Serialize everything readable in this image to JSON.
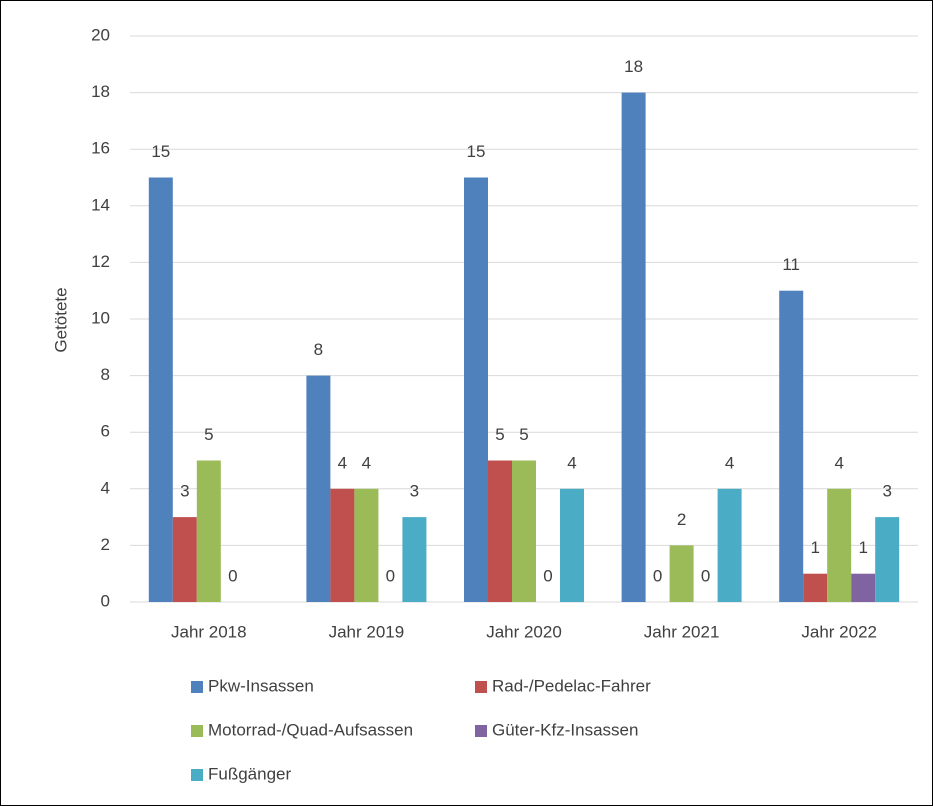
{
  "chart_data": {
    "type": "bar",
    "categories": [
      "Jahr 2018",
      "Jahr 2019",
      "Jahr 2020",
      "Jahr 2021",
      "Jahr 2022"
    ],
    "y_label": "Getötete",
    "series": [
      {
        "name": "Pkw-Insassen",
        "color": "#4f81bd",
        "values": [
          15,
          8,
          15,
          18,
          11
        ]
      },
      {
        "name": "Rad-/Pedelac-Fahrer",
        "color": "#c0504d",
        "values": [
          3,
          4,
          5,
          0,
          1
        ]
      },
      {
        "name": "Motorrad-/Quad-Aufsassen",
        "color": "#9bbb59",
        "values": [
          5,
          4,
          5,
          2,
          4
        ]
      },
      {
        "name": "Güter-Kfz-Insassen",
        "color": "#8064a2",
        "values": [
          0,
          0,
          0,
          0,
          1
        ]
      },
      {
        "name": "Fußgänger",
        "color": "#4bacc6",
        "values": [
          null,
          3,
          4,
          4,
          3
        ]
      }
    ],
    "ylim": [
      0,
      20
    ],
    "yticks": [
      0,
      2,
      4,
      6,
      8,
      10,
      12,
      14,
      16,
      18,
      20
    ],
    "grid": true,
    "legend": "bottom"
  }
}
